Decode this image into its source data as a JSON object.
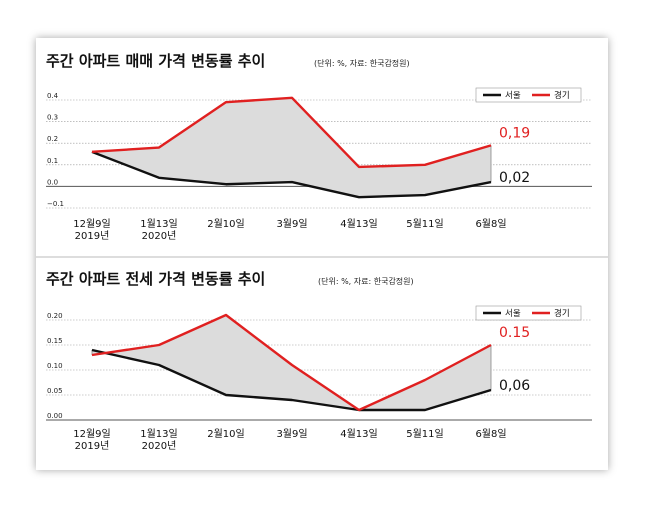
{
  "colors": {
    "seoul": "#111111",
    "gyeonggi": "#e02020",
    "fill": "#dcdcdc",
    "grid": "#9a9a9a",
    "zero_line": "#555555"
  },
  "chart_data": [
    {
      "type": "line",
      "title": "주간 아파트 매매 가격 변동률 추이",
      "subtitle": "(단위: %, 자료: 한국감정원)",
      "categories": [
        [
          "12월9일",
          "2019년"
        ],
        [
          "1월13일",
          "2020년"
        ],
        [
          "2월10일"
        ],
        [
          "3월9일"
        ],
        [
          "4월13일"
        ],
        [
          "5월11일"
        ],
        [
          "6월8일"
        ]
      ],
      "y_ticks": [
        "0.4",
        "0.3",
        "0.2",
        "0.1",
        "0.0",
        "−0.1"
      ],
      "y_tick_values": [
        0.4,
        0.3,
        0.2,
        0.1,
        0.0,
        -0.1
      ],
      "ylim": [
        -0.1,
        0.4
      ],
      "legend": [
        "서울",
        "경기"
      ],
      "series": [
        {
          "name": "서울",
          "values": [
            0.16,
            0.04,
            0.01,
            0.02,
            -0.05,
            -0.04,
            0.02
          ],
          "end_label": "0,02"
        },
        {
          "name": "경기",
          "values": [
            0.16,
            0.18,
            0.39,
            0.41,
            0.09,
            0.1,
            0.19
          ],
          "end_label": "0,19"
        }
      ]
    },
    {
      "type": "line",
      "title": "주간 아파트 전세 가격 변동률 추이",
      "subtitle": "(단위: %, 자료: 한국감정원)",
      "categories": [
        [
          "12월9일",
          "2019년"
        ],
        [
          "1월13일",
          "2020년"
        ],
        [
          "2월10일"
        ],
        [
          "3월9일"
        ],
        [
          "4월13일"
        ],
        [
          "5월11일"
        ],
        [
          "6월8일"
        ]
      ],
      "y_ticks": [
        "0.20",
        "0.15",
        "0.10",
        "0.05",
        "0.00"
      ],
      "y_tick_values": [
        0.2,
        0.15,
        0.1,
        0.05,
        0.0
      ],
      "ylim": [
        0.0,
        0.22
      ],
      "legend": [
        "서울",
        "경기"
      ],
      "series": [
        {
          "name": "서울",
          "values": [
            0.14,
            0.11,
            0.05,
            0.04,
            0.02,
            0.02,
            0.06
          ],
          "end_label": "0,06"
        },
        {
          "name": "경기",
          "values": [
            0.13,
            0.15,
            0.21,
            0.11,
            0.02,
            0.08,
            0.15
          ],
          "end_label": "0.15"
        }
      ]
    }
  ]
}
